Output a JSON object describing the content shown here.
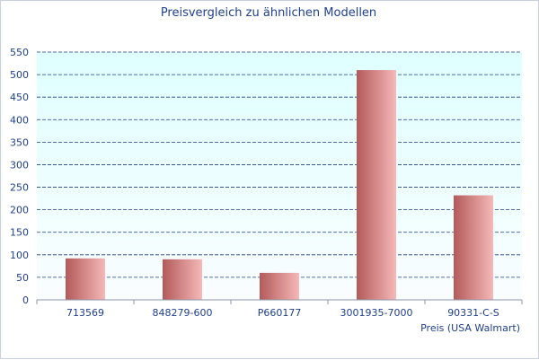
{
  "chart_data": {
    "type": "bar",
    "title": "Preisvergleich zu ähnlichen Modellen",
    "xlabel": "Preis (USA Walmart)",
    "ylabel": "",
    "categories": [
      "713569",
      "848279-600",
      "P660177",
      "3001935-7000",
      "90331-C-S"
    ],
    "values": [
      92,
      90,
      60,
      510,
      232
    ],
    "ylim": [
      0,
      550
    ],
    "yticks": [
      0,
      50,
      100,
      150,
      200,
      250,
      300,
      350,
      400,
      450,
      500,
      550
    ],
    "grid": true,
    "legend": "none",
    "colors": {
      "title": "#1f3f8f",
      "axis_text": "#1f3f8f",
      "grid": "#1f3f8f",
      "plot_bg_top": "#dfffff",
      "plot_bg_bottom": "#fafdff",
      "bar_dark": "#b35a5a",
      "bar_light": "#f6b8b8"
    }
  }
}
